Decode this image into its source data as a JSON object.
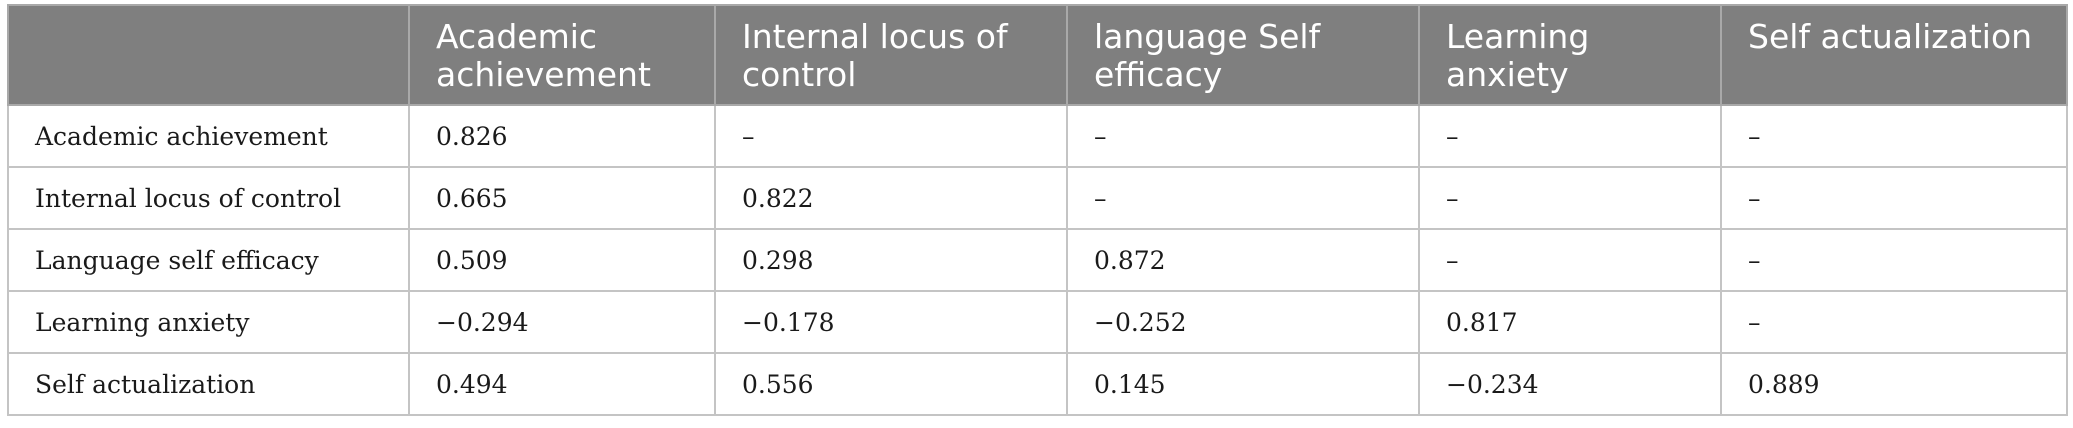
{
  "table": {
    "headers": [
      "",
      "Academic achievement",
      "Internal locus of control",
      "language Self efficacy",
      "Learning anxiety",
      "Self actualization"
    ],
    "rows": [
      {
        "label": "Academic achievement",
        "cells": [
          "0.826",
          "–",
          "–",
          "–",
          "–"
        ]
      },
      {
        "label": "Internal locus of control",
        "cells": [
          "0.665",
          "0.822",
          "–",
          "–",
          "–"
        ]
      },
      {
        "label": "Language self efficacy",
        "cells": [
          "0.509",
          "0.298",
          "0.872",
          "–",
          "–"
        ]
      },
      {
        "label": "Learning anxiety",
        "cells": [
          "−0.294",
          "−0.178",
          "−0.252",
          "0.817",
          "–"
        ]
      },
      {
        "label": "Self actualization",
        "cells": [
          "0.494",
          "0.556",
          "0.145",
          "−0.234",
          "0.889"
        ]
      }
    ]
  },
  "colors": {
    "header_background": "#7f7f7f",
    "header_text": "#ffffff",
    "grid": "#c4c4c4"
  }
}
